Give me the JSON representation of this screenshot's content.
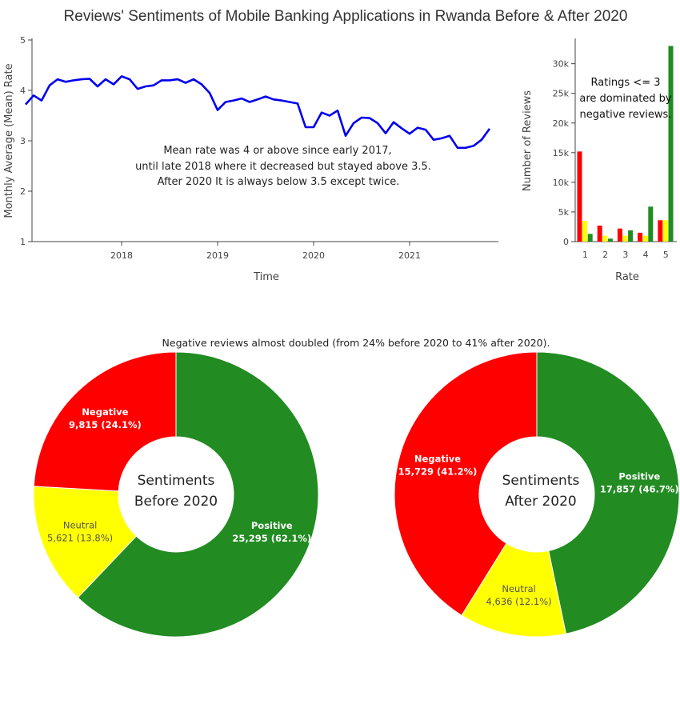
{
  "title": "Reviews' Sentiments of Mobile Banking Applications in Rwanda Before & After 2020",
  "colors": {
    "negative": "#ff0000",
    "neutral": "#ffff00",
    "positive": "#228b22",
    "line": "#0000ee",
    "axis": "#444444"
  },
  "chart_data": [
    {
      "type": "line",
      "xlabel": "Time",
      "ylabel": "Monthly Average (Mean) Rate",
      "ylim": [
        1,
        5
      ],
      "yticks": [
        "1",
        "2",
        "3",
        "4",
        "5"
      ],
      "xticks": [
        "2018",
        "2019",
        "2020",
        "2021"
      ],
      "grid": false,
      "annotation": [
        "Mean rate was 4 or above since early 2017,",
        "until late 2018 where it decreased but stayed above 3.5.",
        "After 2020 It is always below 3.5 except twice."
      ],
      "x": [
        "2017-01",
        "2017-02",
        "2017-03",
        "2017-04",
        "2017-05",
        "2017-06",
        "2017-07",
        "2017-08",
        "2017-09",
        "2017-10",
        "2017-11",
        "2017-12",
        "2018-01",
        "2018-02",
        "2018-03",
        "2018-04",
        "2018-05",
        "2018-06",
        "2018-07",
        "2018-08",
        "2018-09",
        "2018-10",
        "2018-11",
        "2018-12",
        "2019-01",
        "2019-02",
        "2019-03",
        "2019-04",
        "2019-05",
        "2019-06",
        "2019-07",
        "2019-08",
        "2019-09",
        "2019-10",
        "2019-11",
        "2019-12",
        "2020-01",
        "2020-02",
        "2020-03",
        "2020-04",
        "2020-05",
        "2020-06",
        "2020-07",
        "2020-08",
        "2020-09",
        "2020-10",
        "2020-11",
        "2020-12",
        "2021-01",
        "2021-02",
        "2021-03",
        "2021-04",
        "2021-05",
        "2021-06",
        "2021-07",
        "2021-08",
        "2021-09",
        "2021-10",
        "2021-11",
        "2021-12"
      ],
      "series": [
        {
          "values": [
            3.72,
            3.9,
            3.8,
            4.1,
            4.22,
            4.17,
            4.2,
            4.22,
            4.23,
            4.08,
            4.22,
            4.12,
            4.28,
            4.22,
            4.03,
            4.08,
            4.1,
            4.2,
            4.2,
            4.22,
            4.15,
            4.22,
            4.12,
            3.95,
            3.61,
            3.77,
            3.8,
            3.84,
            3.77,
            3.82,
            3.88,
            3.82,
            3.8,
            3.77,
            3.74,
            3.27,
            3.27,
            3.56,
            3.5,
            3.6,
            3.1,
            3.35,
            3.46,
            3.45,
            3.35,
            3.15,
            3.37,
            3.25,
            3.14,
            3.26,
            3.22,
            3.02,
            3.05,
            3.1,
            2.86,
            2.86,
            2.9,
            3.02,
            3.24,
            null
          ]
        }
      ]
    },
    {
      "type": "bar",
      "xlabel": "Rate",
      "ylabel": "Number of Reviews",
      "ylim": [
        0,
        34000
      ],
      "yticks": [
        "0",
        "5k",
        "10k",
        "15k",
        "20k",
        "25k",
        "30k"
      ],
      "categories": [
        "1",
        "2",
        "3",
        "4",
        "5"
      ],
      "annotation": [
        "Ratings <= 3",
        "are dominated by",
        "negative reviews."
      ],
      "series": [
        {
          "values": [
            15200,
            2700,
            2200,
            1500,
            3600
          ]
        },
        {
          "values": [
            3500,
            1000,
            1000,
            1000,
            3600
          ]
        },
        {
          "values": [
            1300,
            500,
            1900,
            5900,
            33000
          ]
        }
      ]
    },
    {
      "type": "pie",
      "subtitle": "Negative reviews almost doubled (from 24% before 2020 to 41% after 2020).",
      "donuts": [
        {
          "center_label": [
            "Sentiments",
            "Before 2020"
          ],
          "slices": [
            {
              "label": "Positive",
              "value": 25295,
              "text": "25,295 (62.1%)"
            },
            {
              "label": "Neutral",
              "value": 5621,
              "text": "5,621 (13.8%)"
            },
            {
              "label": "Negative",
              "value": 9815,
              "text": "9,815 (24.1%)"
            }
          ]
        },
        {
          "center_label": [
            "Sentiments",
            "After 2020"
          ],
          "slices": [
            {
              "label": "Positive",
              "value": 17857,
              "text": "17,857 (46.7%)"
            },
            {
              "label": "Neutral",
              "value": 4636,
              "text": "4,636 (12.1%)"
            },
            {
              "label": "Negative",
              "value": 15729,
              "text": "15,729 (41.2%)"
            }
          ]
        }
      ]
    }
  ]
}
